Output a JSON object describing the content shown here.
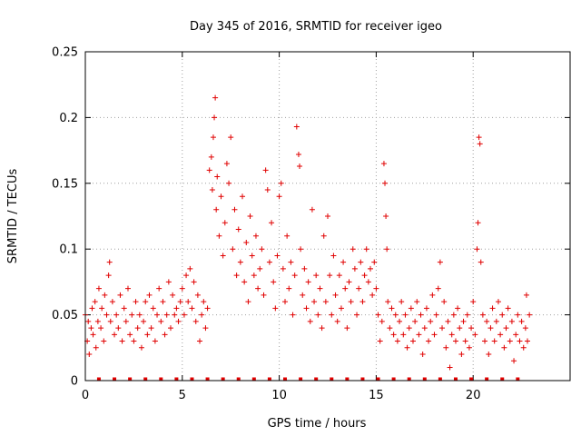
{
  "chart_data": {
    "type": "scatter",
    "title": "Day 345 of 2016, SRMTID for receiver igeo",
    "xlabel": "GPS time / hours",
    "ylabel": "SRMTID / TECUs",
    "xlim": [
      0,
      25
    ],
    "ylim": [
      0,
      0.25
    ],
    "xticks": [
      0,
      5,
      10,
      15,
      20
    ],
    "xtick_labels": [
      "0",
      "5",
      "10",
      "15",
      "20"
    ],
    "yticks": [
      0,
      0.05,
      0.1,
      0.15,
      0.2,
      0.25
    ],
    "ytick_labels": [
      "0",
      "0.05",
      "0.1",
      "0.15",
      "0.2",
      "0.25"
    ],
    "grid": true,
    "marker": "plus",
    "color": "#e00000",
    "series": [
      {
        "name": "SRMTID",
        "points": [
          [
            0.0,
            0.05
          ],
          [
            0.1,
            0.03
          ],
          [
            0.15,
            0.045
          ],
          [
            0.2,
            0.02
          ],
          [
            0.3,
            0.04
          ],
          [
            0.35,
            0.055
          ],
          [
            0.4,
            0.035
          ],
          [
            0.5,
            0.06
          ],
          [
            0.55,
            0.025
          ],
          [
            0.65,
            0.045
          ],
          [
            0.7,
            0.07
          ],
          [
            0.8,
            0.04
          ],
          [
            0.85,
            0.055
          ],
          [
            0.95,
            0.03
          ],
          [
            1.0,
            0.065
          ],
          [
            1.1,
            0.05
          ],
          [
            1.2,
            0.08
          ],
          [
            1.25,
            0.09
          ],
          [
            1.3,
            0.045
          ],
          [
            1.4,
            0.06
          ],
          [
            1.5,
            0.035
          ],
          [
            1.6,
            0.05
          ],
          [
            1.7,
            0.04
          ],
          [
            1.8,
            0.065
          ],
          [
            1.9,
            0.03
          ],
          [
            2.0,
            0.055
          ],
          [
            2.1,
            0.045
          ],
          [
            2.2,
            0.07
          ],
          [
            2.3,
            0.035
          ],
          [
            2.4,
            0.05
          ],
          [
            2.5,
            0.03
          ],
          [
            2.6,
            0.06
          ],
          [
            2.7,
            0.04
          ],
          [
            2.8,
            0.05
          ],
          [
            2.9,
            0.025
          ],
          [
            3.0,
            0.045
          ],
          [
            3.1,
            0.06
          ],
          [
            3.2,
            0.035
          ],
          [
            3.3,
            0.065
          ],
          [
            3.4,
            0.04
          ],
          [
            3.5,
            0.055
          ],
          [
            3.6,
            0.03
          ],
          [
            3.7,
            0.05
          ],
          [
            3.8,
            0.07
          ],
          [
            3.9,
            0.045
          ],
          [
            4.0,
            0.06
          ],
          [
            4.1,
            0.035
          ],
          [
            4.2,
            0.05
          ],
          [
            4.3,
            0.075
          ],
          [
            4.4,
            0.04
          ],
          [
            4.5,
            0.065
          ],
          [
            4.6,
            0.05
          ],
          [
            4.7,
            0.055
          ],
          [
            4.8,
            0.045
          ],
          [
            4.9,
            0.06
          ],
          [
            5.0,
            0.07
          ],
          [
            5.1,
            0.05
          ],
          [
            5.2,
            0.08
          ],
          [
            5.3,
            0.06
          ],
          [
            5.4,
            0.085
          ],
          [
            5.5,
            0.055
          ],
          [
            5.6,
            0.075
          ],
          [
            5.7,
            0.045
          ],
          [
            5.8,
            0.065
          ],
          [
            5.9,
            0.03
          ],
          [
            6.0,
            0.05
          ],
          [
            6.1,
            0.06
          ],
          [
            6.2,
            0.04
          ],
          [
            6.3,
            0.055
          ],
          [
            6.4,
            0.16
          ],
          [
            6.5,
            0.17
          ],
          [
            6.55,
            0.145
          ],
          [
            6.6,
            0.185
          ],
          [
            6.65,
            0.2
          ],
          [
            6.7,
            0.215
          ],
          [
            6.75,
            0.13
          ],
          [
            6.8,
            0.155
          ],
          [
            6.9,
            0.11
          ],
          [
            7.0,
            0.14
          ],
          [
            7.1,
            0.095
          ],
          [
            7.2,
            0.12
          ],
          [
            7.3,
            0.165
          ],
          [
            7.4,
            0.15
          ],
          [
            7.5,
            0.185
          ],
          [
            7.6,
            0.1
          ],
          [
            7.7,
            0.13
          ],
          [
            7.8,
            0.08
          ],
          [
            7.9,
            0.115
          ],
          [
            8.0,
            0.09
          ],
          [
            8.1,
            0.14
          ],
          [
            8.2,
            0.075
          ],
          [
            8.3,
            0.105
          ],
          [
            8.4,
            0.06
          ],
          [
            8.5,
            0.125
          ],
          [
            8.6,
            0.095
          ],
          [
            8.7,
            0.08
          ],
          [
            8.8,
            0.11
          ],
          [
            8.9,
            0.07
          ],
          [
            9.0,
            0.085
          ],
          [
            9.1,
            0.1
          ],
          [
            9.2,
            0.065
          ],
          [
            9.3,
            0.16
          ],
          [
            9.4,
            0.145
          ],
          [
            9.5,
            0.09
          ],
          [
            9.6,
            0.12
          ],
          [
            9.7,
            0.075
          ],
          [
            9.8,
            0.055
          ],
          [
            9.9,
            0.095
          ],
          [
            10.0,
            0.14
          ],
          [
            10.1,
            0.15
          ],
          [
            10.2,
            0.085
          ],
          [
            10.3,
            0.06
          ],
          [
            10.4,
            0.11
          ],
          [
            10.5,
            0.07
          ],
          [
            10.6,
            0.09
          ],
          [
            10.7,
            0.05
          ],
          [
            10.8,
            0.08
          ],
          [
            10.9,
            0.193
          ],
          [
            11.0,
            0.172
          ],
          [
            11.05,
            0.163
          ],
          [
            11.1,
            0.1
          ],
          [
            11.2,
            0.065
          ],
          [
            11.3,
            0.085
          ],
          [
            11.4,
            0.055
          ],
          [
            11.5,
            0.075
          ],
          [
            11.6,
            0.045
          ],
          [
            11.7,
            0.13
          ],
          [
            11.8,
            0.06
          ],
          [
            11.9,
            0.08
          ],
          [
            12.0,
            0.05
          ],
          [
            12.1,
            0.07
          ],
          [
            12.2,
            0.04
          ],
          [
            12.3,
            0.11
          ],
          [
            12.4,
            0.06
          ],
          [
            12.5,
            0.125
          ],
          [
            12.6,
            0.08
          ],
          [
            12.7,
            0.05
          ],
          [
            12.8,
            0.095
          ],
          [
            12.9,
            0.065
          ],
          [
            13.0,
            0.045
          ],
          [
            13.1,
            0.08
          ],
          [
            13.2,
            0.055
          ],
          [
            13.3,
            0.09
          ],
          [
            13.4,
            0.07
          ],
          [
            13.5,
            0.04
          ],
          [
            13.6,
            0.075
          ],
          [
            13.7,
            0.06
          ],
          [
            13.8,
            0.1
          ],
          [
            13.9,
            0.085
          ],
          [
            14.0,
            0.05
          ],
          [
            14.1,
            0.07
          ],
          [
            14.2,
            0.09
          ],
          [
            14.3,
            0.06
          ],
          [
            14.4,
            0.08
          ],
          [
            14.5,
            0.1
          ],
          [
            14.6,
            0.075
          ],
          [
            14.7,
            0.085
          ],
          [
            14.8,
            0.065
          ],
          [
            14.9,
            0.09
          ],
          [
            15.0,
            0.07
          ],
          [
            15.1,
            0.05
          ],
          [
            15.2,
            0.03
          ],
          [
            15.3,
            0.045
          ],
          [
            15.4,
            0.165
          ],
          [
            15.45,
            0.15
          ],
          [
            15.5,
            0.125
          ],
          [
            15.55,
            0.1
          ],
          [
            15.6,
            0.06
          ],
          [
            15.7,
            0.04
          ],
          [
            15.8,
            0.055
          ],
          [
            15.9,
            0.035
          ],
          [
            16.0,
            0.05
          ],
          [
            16.1,
            0.03
          ],
          [
            16.2,
            0.045
          ],
          [
            16.3,
            0.06
          ],
          [
            16.4,
            0.035
          ],
          [
            16.5,
            0.05
          ],
          [
            16.6,
            0.025
          ],
          [
            16.7,
            0.04
          ],
          [
            16.8,
            0.055
          ],
          [
            16.9,
            0.03
          ],
          [
            17.0,
            0.045
          ],
          [
            17.1,
            0.06
          ],
          [
            17.2,
            0.035
          ],
          [
            17.3,
            0.05
          ],
          [
            17.4,
            0.02
          ],
          [
            17.5,
            0.04
          ],
          [
            17.6,
            0.055
          ],
          [
            17.7,
            0.03
          ],
          [
            17.8,
            0.045
          ],
          [
            17.9,
            0.065
          ],
          [
            18.0,
            0.035
          ],
          [
            18.1,
            0.05
          ],
          [
            18.2,
            0.07
          ],
          [
            18.3,
            0.09
          ],
          [
            18.4,
            0.04
          ],
          [
            18.5,
            0.06
          ],
          [
            18.6,
            0.025
          ],
          [
            18.7,
            0.045
          ],
          [
            18.8,
            0.01
          ],
          [
            18.9,
            0.035
          ],
          [
            19.0,
            0.05
          ],
          [
            19.1,
            0.03
          ],
          [
            19.2,
            0.055
          ],
          [
            19.3,
            0.04
          ],
          [
            19.4,
            0.02
          ],
          [
            19.5,
            0.045
          ],
          [
            19.6,
            0.03
          ],
          [
            19.7,
            0.05
          ],
          [
            19.8,
            0.025
          ],
          [
            19.9,
            0.04
          ],
          [
            20.0,
            0.06
          ],
          [
            20.1,
            0.035
          ],
          [
            20.2,
            0.1
          ],
          [
            20.25,
            0.12
          ],
          [
            20.3,
            0.185
          ],
          [
            20.35,
            0.18
          ],
          [
            20.4,
            0.09
          ],
          [
            20.5,
            0.05
          ],
          [
            20.6,
            0.03
          ],
          [
            20.7,
            0.045
          ],
          [
            20.8,
            0.02
          ],
          [
            20.9,
            0.04
          ],
          [
            21.0,
            0.055
          ],
          [
            21.1,
            0.03
          ],
          [
            21.2,
            0.045
          ],
          [
            21.3,
            0.06
          ],
          [
            21.4,
            0.035
          ],
          [
            21.5,
            0.05
          ],
          [
            21.6,
            0.025
          ],
          [
            21.7,
            0.04
          ],
          [
            21.8,
            0.055
          ],
          [
            21.9,
            0.03
          ],
          [
            22.0,
            0.045
          ],
          [
            22.1,
            0.015
          ],
          [
            22.2,
            0.035
          ],
          [
            22.3,
            0.05
          ],
          [
            22.4,
            0.03
          ],
          [
            22.5,
            0.045
          ],
          [
            22.6,
            0.025
          ],
          [
            22.7,
            0.04
          ],
          [
            22.75,
            0.065
          ],
          [
            22.8,
            0.03
          ],
          [
            22.9,
            0.05
          ]
        ]
      }
    ],
    "baseline_markers_x": [
      0.7,
      1.5,
      2.3,
      3.1,
      3.9,
      4.7,
      5.5,
      6.3,
      7.1,
      7.9,
      8.7,
      9.5,
      10.3,
      11.1,
      11.9,
      12.7,
      13.5,
      14.3,
      15.1,
      15.9,
      16.7,
      17.5,
      18.3,
      19.1,
      19.9,
      20.7,
      21.5,
      22.3
    ]
  }
}
